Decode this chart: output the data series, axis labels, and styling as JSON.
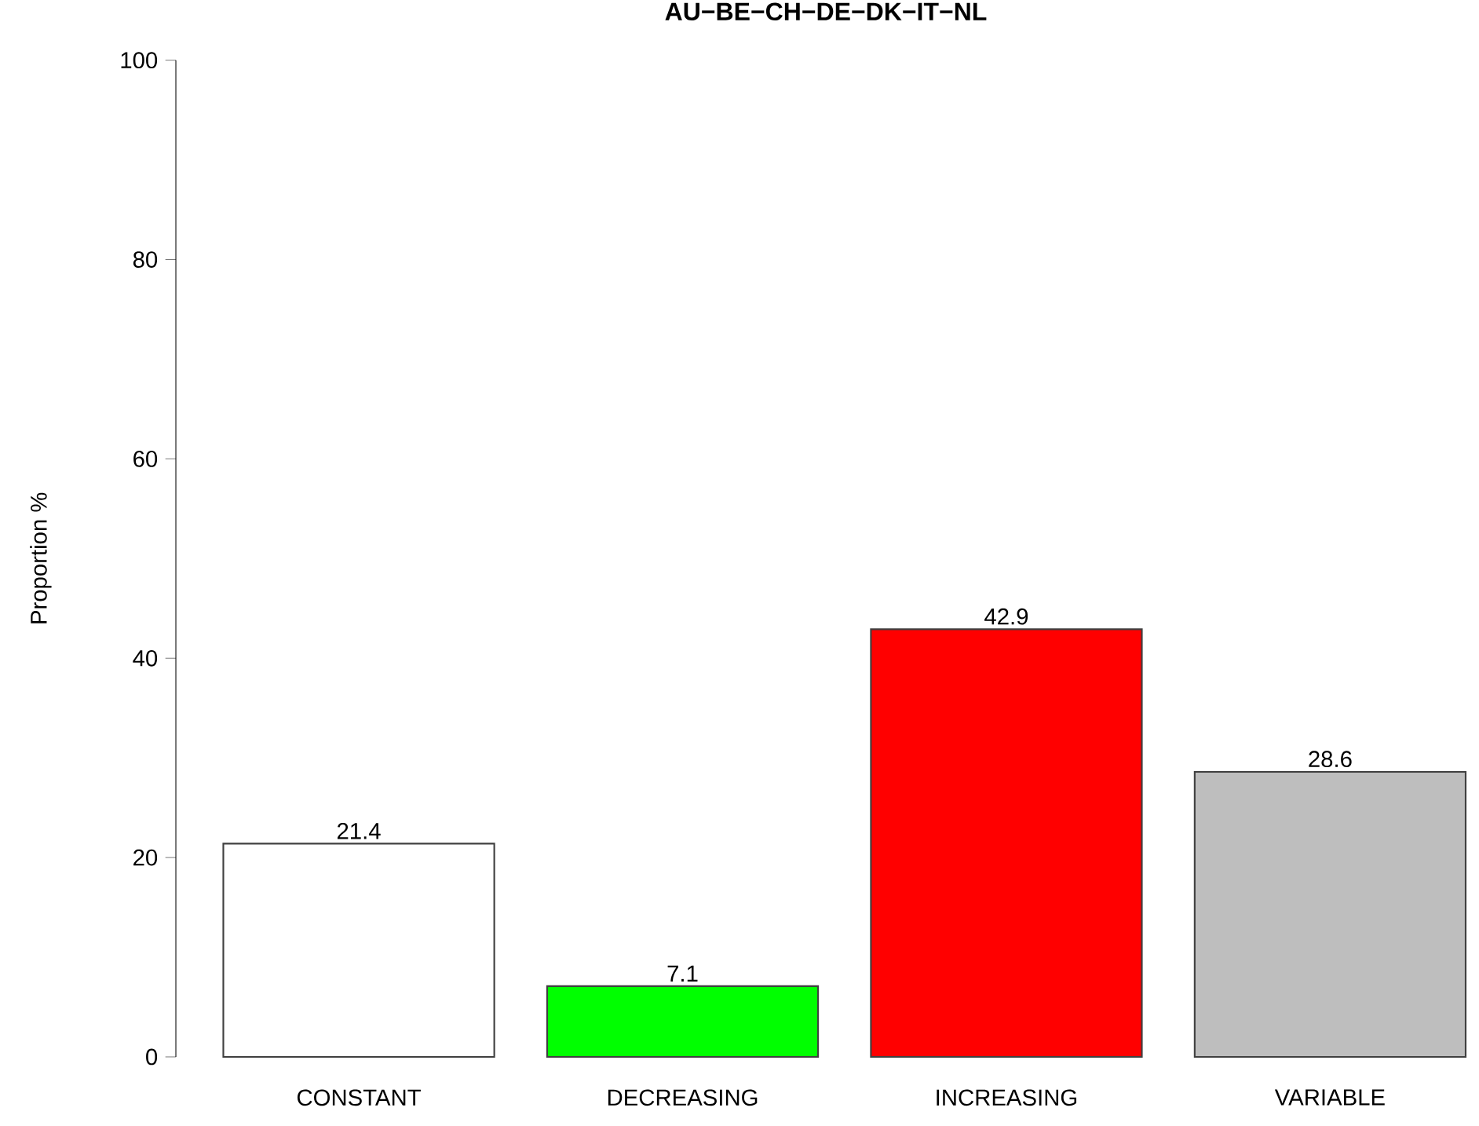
{
  "chart_data": {
    "type": "bar",
    "title": "AU−BE−CH−DE−DK−IT−NL",
    "ylabel": "Proportion %",
    "categories": [
      "CONSTANT",
      "DECREASING",
      "INCREASING",
      "VARIABLE"
    ],
    "values": [
      21.4,
      7.1,
      42.9,
      28.6
    ],
    "colors": [
      "#ffffff",
      "#00ff00",
      "#ff0000",
      "#bebebe"
    ],
    "ylim": [
      0,
      100
    ],
    "yticks": [
      0,
      20,
      40,
      60,
      80,
      100
    ],
    "data_labels": true,
    "grid": false
  }
}
